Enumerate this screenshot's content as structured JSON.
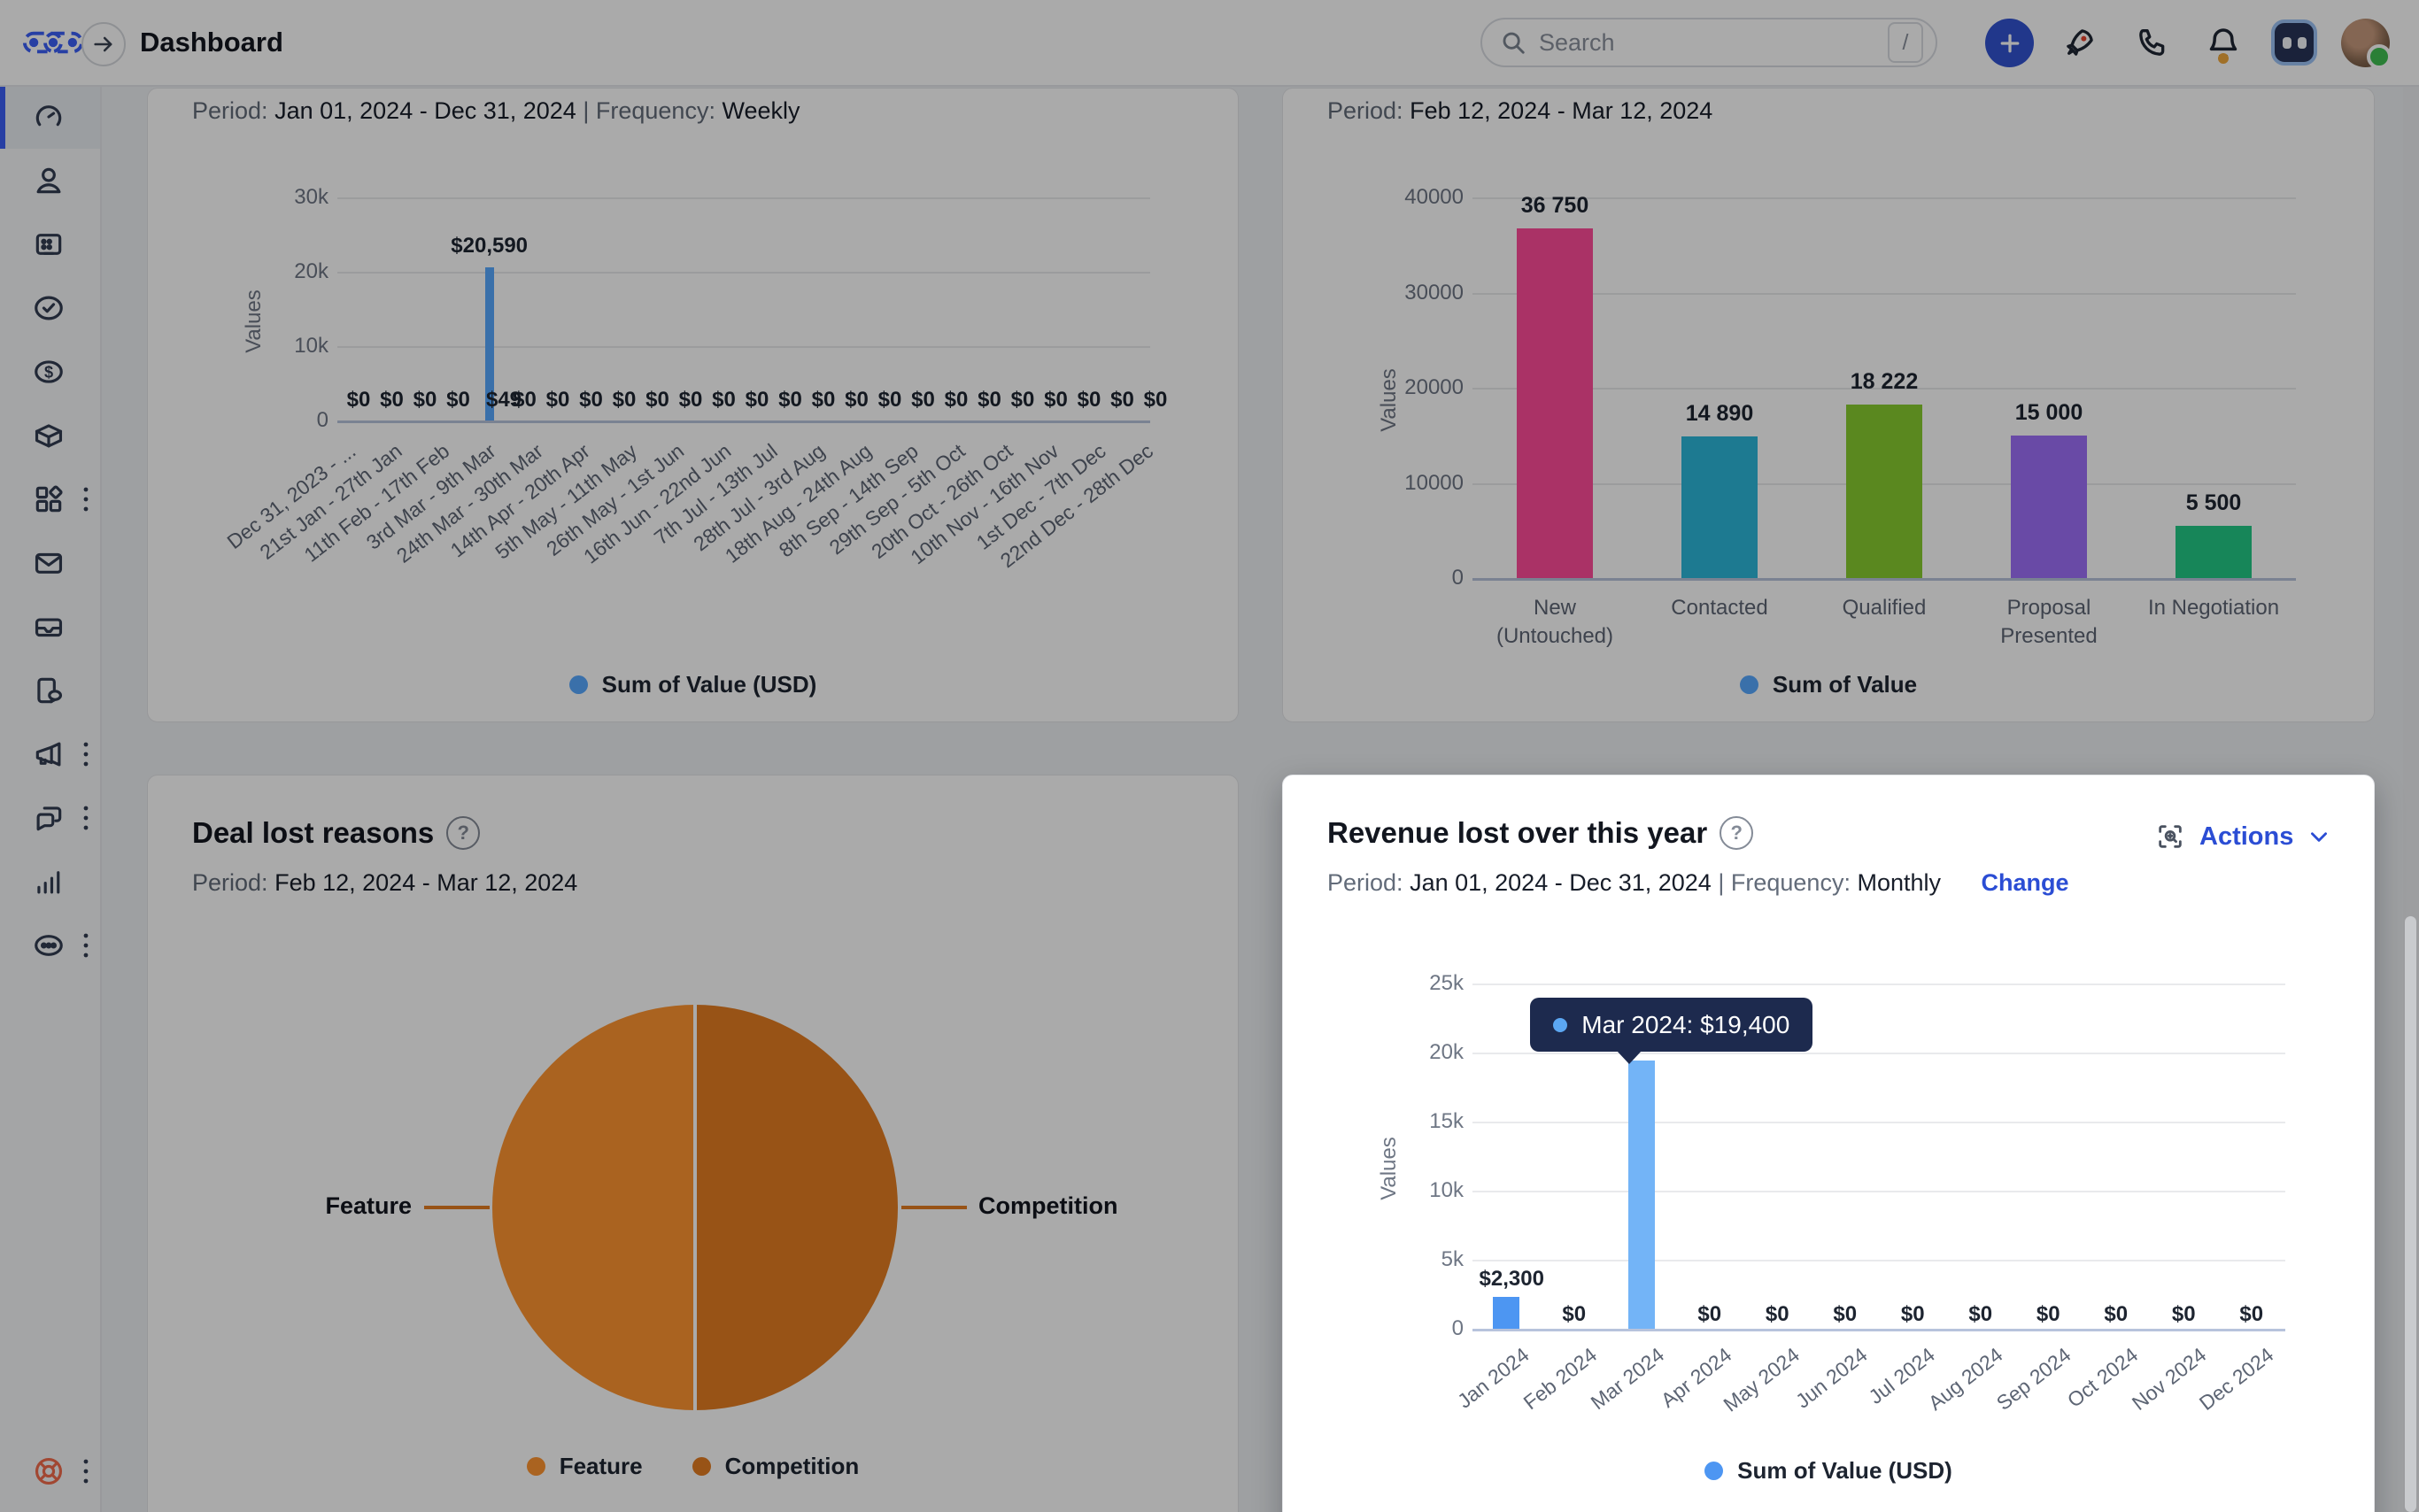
{
  "topbar": {
    "title": "Dashboard",
    "search": {
      "placeholder": "Search",
      "shortcut": "/"
    }
  },
  "labels": {
    "period": "Period:",
    "frequency": "Frequency:",
    "sep": "|"
  },
  "sidebar": {
    "items": [
      {
        "name": "dashboard",
        "icon": "speedometer",
        "active": true,
        "kebab": false
      },
      {
        "name": "contacts",
        "icon": "user",
        "active": false,
        "kebab": false
      },
      {
        "name": "smart-views",
        "icon": "card",
        "active": false,
        "kebab": false
      },
      {
        "name": "tasks",
        "icon": "check",
        "active": false,
        "kebab": false
      },
      {
        "name": "opportunities",
        "icon": "dollar",
        "active": false,
        "kebab": false
      },
      {
        "name": "products",
        "icon": "cube",
        "active": false,
        "kebab": false
      },
      {
        "name": "apps",
        "icon": "grid",
        "active": false,
        "kebab": true
      },
      {
        "name": "email",
        "icon": "mail",
        "active": false,
        "kebab": false
      },
      {
        "name": "inbox",
        "icon": "tray",
        "active": false,
        "kebab": false
      },
      {
        "name": "calls",
        "icon": "phonechat",
        "active": false,
        "kebab": false
      },
      {
        "name": "campaigns",
        "icon": "megaphone",
        "active": false,
        "kebab": true
      },
      {
        "name": "conversations",
        "icon": "chat",
        "active": false,
        "kebab": true
      },
      {
        "name": "reports",
        "icon": "bars",
        "active": false,
        "kebab": false
      },
      {
        "name": "more",
        "icon": "more",
        "active": false,
        "kebab": true
      },
      {
        "name": "help",
        "icon": "buoy",
        "active": false,
        "kebab": true,
        "bottom": true,
        "color": "#f26b4c"
      }
    ]
  },
  "colors": {
    "brand_blue": "#3b5ff7",
    "link_blue": "#2b4dd4",
    "series_blue_dim": "#57a8ff",
    "series_blue": "#4d96f2",
    "series_blue_hover": "#73b4f7",
    "tooltip_bg": "#1d2a4e",
    "tooltip_dot": "#5ca7f2"
  },
  "chart_data": [
    {
      "id": "deal-value-weekly",
      "type": "bar",
      "period": "Jan 01, 2024 - Dec 31, 2024",
      "frequency": "Weekly",
      "ylabel": "Values",
      "yticks": [
        {
          "label": "30k",
          "value": 30000
        },
        {
          "label": "20k",
          "value": 20000
        },
        {
          "label": "10k",
          "value": 10000
        },
        {
          "label": "0",
          "value": 0
        }
      ],
      "ylim": [
        0,
        30000
      ],
      "n_weeks": 52,
      "bars": [
        {
          "position_frac": 0.187,
          "value": 20590,
          "label": "$20,590"
        }
      ],
      "value_label_row": [
        "$0",
        "$0",
        "$0",
        "$0",
        "$49",
        "$0",
        "$0",
        "$0",
        "$0",
        "$0",
        "$0",
        "$0",
        "$0",
        "$0",
        "$0",
        "$0",
        "$0",
        "$0",
        "$0",
        "$0",
        "$0",
        "$0",
        "$0",
        "$0",
        "$0"
      ],
      "x_tick_labels": [
        "Dec 31, 2023 - ...",
        "21st Jan - 27th Jan",
        "11th Feb - 17th Feb",
        "3rd Mar - 9th Mar",
        "24th Mar - 30th Mar",
        "14th Apr - 20th Apr",
        "5th May - 11th May",
        "26th May - 1st Jun",
        "16th Jun - 22nd Jun",
        "7th Jul - 13th Jul",
        "28th Jul - 3rd Aug",
        "18th Aug - 24th Aug",
        "8th Sep - 14th Sep",
        "29th Sep - 5th Oct",
        "20th Oct - 26th Oct",
        "10th Nov - 16th Nov",
        "1st Dec - 7th Dec",
        "22nd Dec - 28th Dec"
      ],
      "series_color": "#57a8ff",
      "legend": "Sum of Value (USD)"
    },
    {
      "id": "pipeline-stage-value",
      "type": "bar",
      "period": "Feb 12, 2024 - Mar 12, 2024",
      "ylabel": "Values",
      "yticks": [
        {
          "label": "40000",
          "value": 40000
        },
        {
          "label": "30000",
          "value": 30000
        },
        {
          "label": "20000",
          "value": 20000
        },
        {
          "label": "10000",
          "value": 10000
        },
        {
          "label": "0",
          "value": 0
        }
      ],
      "ylim": [
        0,
        40000
      ],
      "categories": [
        "New (Untouched)",
        "Contacted",
        "Qualified",
        "Proposal Presented",
        "In Negotiation"
      ],
      "category_lines": [
        [
          "New",
          "(Untouched)"
        ],
        [
          "Contacted"
        ],
        [
          "Qualified"
        ],
        [
          "Proposal",
          "Presented"
        ],
        [
          "In Negotiation"
        ]
      ],
      "values": [
        36750,
        14890,
        18222,
        15000,
        5500
      ],
      "value_labels": [
        "36 750",
        "14 890",
        "18 222",
        "15 000",
        "5 500"
      ],
      "colors": [
        "#ff4c9a",
        "#2cb7da",
        "#87cd2f",
        "#9e70fa",
        "#23c986"
      ],
      "legend": "Sum of Value"
    },
    {
      "id": "deal-lost-reasons",
      "type": "pie",
      "title": "Deal lost reasons",
      "help_glyph": "?",
      "period": "Feb 12, 2024 - Mar 12, 2024",
      "slices": [
        {
          "label": "Feature",
          "value_percent": 50,
          "color": "#ff9530"
        },
        {
          "label": "Competition",
          "value_percent": 50,
          "color": "#e47d22"
        }
      ]
    },
    {
      "id": "revenue-lost-over-this-year",
      "type": "bar",
      "title": "Revenue lost over this year",
      "help_glyph": "?",
      "actions_label": "Actions",
      "change_label": "Change",
      "period": "Jan 01, 2024 - Dec 31, 2024",
      "frequency": "Monthly",
      "ylabel": "Values",
      "yticks": [
        {
          "label": "25k",
          "value": 25000
        },
        {
          "label": "20k",
          "value": 20000
        },
        {
          "label": "15k",
          "value": 15000
        },
        {
          "label": "10k",
          "value": 10000
        },
        {
          "label": "5k",
          "value": 5000
        },
        {
          "label": "0",
          "value": 0
        }
      ],
      "ylim": [
        0,
        25000
      ],
      "months": [
        "Jan 2024",
        "Feb 2024",
        "Mar 2024",
        "Apr 2024",
        "May 2024",
        "Jun 2024",
        "Jul 2024",
        "Aug 2024",
        "Sep 2024",
        "Oct 2024",
        "Nov 2024",
        "Dec 2024"
      ],
      "values": [
        2300,
        0,
        19400,
        0,
        0,
        0,
        0,
        0,
        0,
        0,
        0,
        0
      ],
      "value_labels": [
        "$2,300",
        "$0",
        "$19,400",
        "$0",
        "$0",
        "$0",
        "$0",
        "$0",
        "$0",
        "$0",
        "$0",
        "$0"
      ],
      "bar_color": "#4d96f2",
      "bar_hover_color": "#73b4f7",
      "hover_index": 2,
      "tooltip": {
        "label": "Mar 2024: $19,400"
      },
      "legend": "Sum of Value (USD)"
    }
  ]
}
